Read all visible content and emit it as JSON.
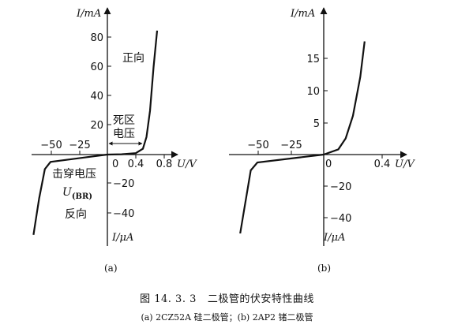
{
  "figure": {
    "caption_number": "图 14. 3. 3",
    "caption_title": "二极管的伏安特性曲线",
    "subcaption": "(a) 2CZ52A 硅二极管；(b) 2AP2 锗二极管",
    "ink_color": "#111111"
  },
  "chart_data": [
    {
      "type": "line",
      "panel_label": "(a)",
      "xlabel": "U/V",
      "ylabel_forward": "I/mA",
      "ylabel_reverse": "I/μA",
      "x_ticks_negative": [
        "−50",
        "−25"
      ],
      "x_ticks_positive": [
        "0.4",
        "0.8"
      ],
      "x_tick_extra": "0",
      "y_ticks_forward": [
        "20",
        "40",
        "60",
        "80"
      ],
      "y_ticks_reverse": [
        "−20",
        "−40"
      ],
      "annotations": {
        "forward": "正向",
        "dead_zone_line1": "死区",
        "dead_zone_line2": "电压",
        "breakdown": "击穿电压",
        "breakdown_symbol": "U",
        "breakdown_sub": "(BR)",
        "reverse": "反向"
      },
      "forward_series": {
        "x": [
          0,
          0.2,
          0.4,
          0.5,
          0.55,
          0.6,
          0.65,
          0.7
        ],
        "y": [
          0,
          0.2,
          1,
          4,
          12,
          30,
          60,
          85
        ]
      },
      "reverse_series": {
        "x": [
          0,
          -20,
          -50,
          -55,
          -60,
          -62,
          -65
        ],
        "y": [
          0,
          -2,
          -5,
          -10,
          -30,
          -40,
          -55
        ]
      }
    },
    {
      "type": "line",
      "panel_label": "(b)",
      "xlabel": "U/V",
      "ylabel_forward": "I/mA",
      "ylabel_reverse": "I/μA",
      "x_ticks_negative": [
        "−50",
        "−25"
      ],
      "x_ticks_positive": [
        "0.4"
      ],
      "x_tick_extra": "0",
      "y_ticks_forward": [
        "5",
        "10",
        "15"
      ],
      "y_ticks_reverse": [
        "−20",
        "−40"
      ],
      "forward_series": {
        "x": [
          0,
          0.1,
          0.15,
          0.2,
          0.25,
          0.28
        ],
        "y": [
          0,
          0.8,
          2.5,
          6,
          12,
          17.5
        ]
      },
      "reverse_series": {
        "x": [
          0,
          -20,
          -50,
          -55,
          -60,
          -63
        ],
        "y": [
          0,
          -2,
          -5,
          -10,
          -35,
          -50
        ]
      }
    }
  ]
}
